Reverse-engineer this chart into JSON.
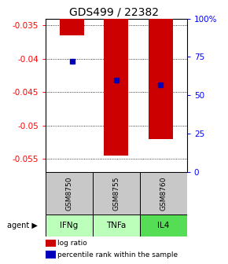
{
  "title": "GDS499 / 22382",
  "samples": [
    "GSM8750",
    "GSM8755",
    "GSM8760"
  ],
  "agents": [
    "IFNg",
    "TNFa",
    "IL4"
  ],
  "log_ratios": [
    -0.0365,
    -0.0545,
    -0.052
  ],
  "percentile_ranks": [
    72,
    60,
    57
  ],
  "ylim_left": [
    -0.057,
    -0.034
  ],
  "ylim_right": [
    0,
    100
  ],
  "left_ticks": [
    -0.055,
    -0.05,
    -0.045,
    -0.04,
    -0.035
  ],
  "right_ticks": [
    0,
    25,
    50,
    75,
    100
  ],
  "bar_color": "#cc0000",
  "dot_color": "#0000bb",
  "sample_bg": "#c8c8c8",
  "agent_bg_light": "#bbffbb",
  "agent_bg_dark": "#55dd55",
  "legend_bar_label": "log ratio",
  "legend_dot_label": "percentile rank within the sample",
  "agent_label": "agent",
  "title_fontsize": 10,
  "tick_fontsize": 7.5,
  "label_fontsize": 7
}
